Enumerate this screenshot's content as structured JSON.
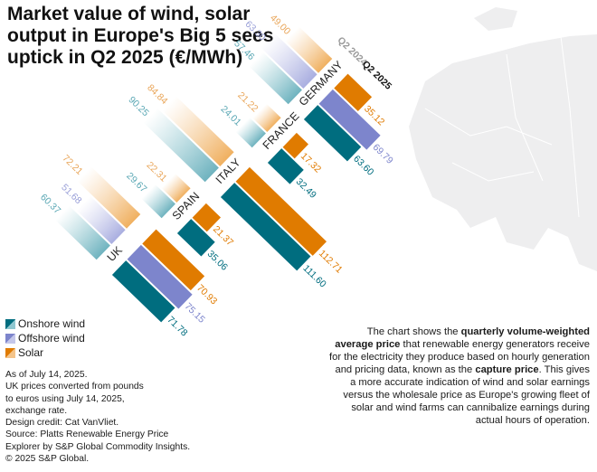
{
  "title": "Market value of wind, solar output in Europe's Big 5 sees uptick in Q2 2025 (€/MWh)",
  "legend": {
    "onshore": "Onshore wind",
    "offshore": "Offshore wind",
    "solar": "Solar"
  },
  "notes": [
    "As of July 14, 2025.",
    "UK prices converted from pounds",
    "to euros using July 14, 2025,",
    "exchange rate.",
    "Design credit: Cat VanVliet.",
    "Source: Platts Renewable Energy Price",
    "Explorer by S&P Global Commodity Insights.",
    "© 2025 S&P Global."
  ],
  "description": {
    "part1": "The chart shows the",
    "bold1": "quarterly volume-weighted average price",
    "part2": "that renewable energy generators receive for the electricity they produce based on hourly generation and pricing data, known as the",
    "bold2": "capture price",
    "part3": ". This gives a more accurate indication of wind and solar earnings versus the wholesale price as Europe's growing fleet of solar and wind farms can cannibalize earnings during actual hours of operation."
  },
  "chart_data": {
    "type": "bar",
    "title": "Market value of wind, solar output in Europe's Big 5 sees uptick in Q2 2025 (€/MWh)",
    "periods": [
      "Q2 2024",
      "Q2 2025"
    ],
    "categories": [
      "UK",
      "SPAIN",
      "ITALY",
      "FRANCE",
      "GERMANY"
    ],
    "series": [
      {
        "name": "Onshore wind",
        "color": "#006d7f",
        "color_q2_2024": "#8fc7d0",
        "q2_2024": [
          60.37,
          29.67,
          90.25,
          24.01,
          57.46
        ],
        "q2_2025": [
          71.78,
          35.06,
          111.6,
          32.49,
          63.6
        ]
      },
      {
        "name": "Offshore wind",
        "color": "#7d85cc",
        "color_q2_2024": "#c4c7ea",
        "q2_2024": [
          51.68,
          null,
          null,
          null,
          63.3
        ],
        "q2_2025": [
          75.15,
          null,
          null,
          null,
          69.79
        ]
      },
      {
        "name": "Solar",
        "color": "#e07b00",
        "color_q2_2024": "#f4c48a",
        "q2_2024": [
          72.21,
          22.31,
          84.84,
          21.22,
          49.0
        ],
        "q2_2025": [
          70.93,
          21.37,
          112.71,
          17.32,
          35.12
        ]
      }
    ]
  }
}
